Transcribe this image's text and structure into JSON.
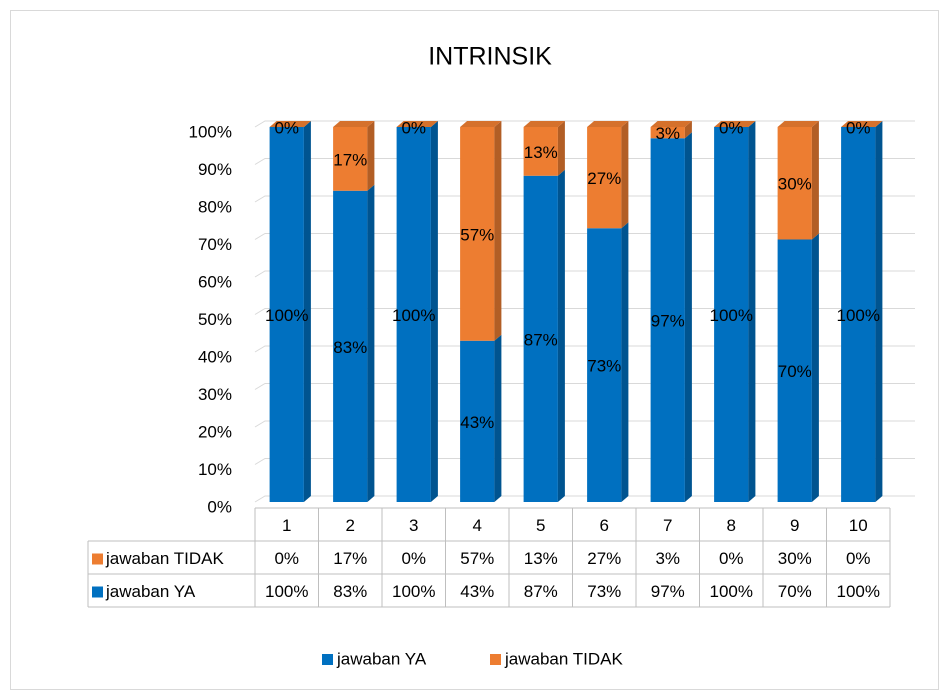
{
  "chart_data": {
    "type": "stacked_bar_3d",
    "title": "INTRINSIK",
    "categories": [
      "1",
      "2",
      "3",
      "4",
      "5",
      "6",
      "7",
      "8",
      "9",
      "10"
    ],
    "series": [
      {
        "name": "jawaban YA",
        "color": "#0070c0",
        "values": [
          100,
          83,
          100,
          43,
          87,
          73,
          97,
          100,
          70,
          100
        ],
        "value_labels": [
          "100%",
          "83%",
          "100%",
          "43%",
          "87%",
          "73%",
          "97%",
          "100%",
          "70%",
          "100%"
        ]
      },
      {
        "name": "jawaban TIDAK",
        "color": "#ed7d31",
        "values": [
          0,
          17,
          0,
          57,
          13,
          27,
          3,
          0,
          30,
          0
        ],
        "value_labels": [
          "0%",
          "17%",
          "0%",
          "57%",
          "13%",
          "27%",
          "3%",
          "0%",
          "30%",
          "0%"
        ]
      }
    ],
    "ylim": [
      0,
      100
    ],
    "yticks": [
      {
        "value": 0,
        "label": "0%"
      },
      {
        "value": 10,
        "label": "10%"
      },
      {
        "value": 20,
        "label": "20%"
      },
      {
        "value": 30,
        "label": "30%"
      },
      {
        "value": 40,
        "label": "40%"
      },
      {
        "value": 50,
        "label": "50%"
      },
      {
        "value": 60,
        "label": "60%"
      },
      {
        "value": 70,
        "label": "70%"
      },
      {
        "value": 80,
        "label": "80%"
      },
      {
        "value": 90,
        "label": "90%"
      },
      {
        "value": 100,
        "label": "100%"
      }
    ],
    "grid": true,
    "legend": "bottom",
    "data_table": true
  }
}
